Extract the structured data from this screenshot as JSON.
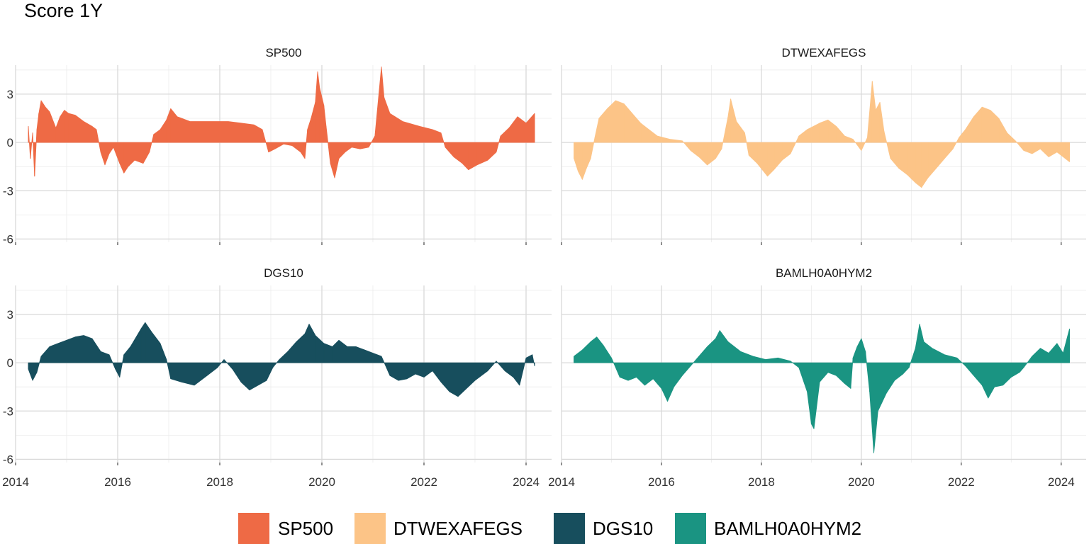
{
  "title": "Score 1Y",
  "chart_data": {
    "type": "bar",
    "title": "Score 1Y",
    "layout": "facet 2x2, shared axes",
    "x_range": [
      "2014-01-01",
      "2024-07-01"
    ],
    "x_ticks": [
      "2014",
      "2016",
      "2018",
      "2020",
      "2022",
      "2024"
    ],
    "y_range": [
      -6.2,
      4.8
    ],
    "y_ticks": [
      "3",
      "0",
      "-3",
      "-6"
    ],
    "grid": true,
    "legend_position": "bottom",
    "series": [
      {
        "name": "SP500",
        "color": "#EE6A45",
        "points": [
          [
            "2014-04-01",
            1.0
          ],
          [
            "2014-04-15",
            -1.0
          ],
          [
            "2014-05-01",
            0.6
          ],
          [
            "2014-05-15",
            -2.1
          ],
          [
            "2014-06-01",
            0.8
          ],
          [
            "2014-06-15",
            1.8
          ],
          [
            "2014-07-01",
            2.6
          ],
          [
            "2014-08-01",
            2.2
          ],
          [
            "2014-09-01",
            1.9
          ],
          [
            "2014-10-15",
            0.9
          ],
          [
            "2014-11-15",
            1.6
          ],
          [
            "2014-12-15",
            2.0
          ],
          [
            "2015-01-15",
            1.8
          ],
          [
            "2015-03-01",
            1.7
          ],
          [
            "2015-05-01",
            1.3
          ],
          [
            "2015-07-01",
            1.0
          ],
          [
            "2015-08-01",
            0.8
          ],
          [
            "2015-09-01",
            -0.6
          ],
          [
            "2015-10-01",
            -1.4
          ],
          [
            "2015-11-01",
            -0.7
          ],
          [
            "2015-12-01",
            -0.3
          ],
          [
            "2016-01-15",
            -1.3
          ],
          [
            "2016-02-15",
            -1.9
          ],
          [
            "2016-03-15",
            -1.5
          ],
          [
            "2016-05-01",
            -1.1
          ],
          [
            "2016-07-01",
            -1.3
          ],
          [
            "2016-08-15",
            -0.6
          ],
          [
            "2016-09-15",
            0.5
          ],
          [
            "2016-11-01",
            0.8
          ],
          [
            "2016-12-15",
            1.4
          ],
          [
            "2017-01-15",
            2.1
          ],
          [
            "2017-03-01",
            1.6
          ],
          [
            "2017-06-01",
            1.3
          ],
          [
            "2017-09-01",
            1.3
          ],
          [
            "2017-12-01",
            1.3
          ],
          [
            "2018-03-01",
            1.3
          ],
          [
            "2018-06-01",
            1.2
          ],
          [
            "2018-09-01",
            1.1
          ],
          [
            "2018-11-01",
            0.8
          ],
          [
            "2018-12-15",
            -0.6
          ],
          [
            "2019-02-01",
            -0.4
          ],
          [
            "2019-04-01",
            -0.1
          ],
          [
            "2019-06-01",
            -0.2
          ],
          [
            "2019-08-01",
            -0.6
          ],
          [
            "2019-09-01",
            -1.0
          ],
          [
            "2019-09-20",
            0.8
          ],
          [
            "2019-10-15",
            1.5
          ],
          [
            "2019-11-15",
            2.5
          ],
          [
            "2019-12-01",
            4.4
          ],
          [
            "2019-12-15",
            3.4
          ],
          [
            "2020-01-15",
            2.3
          ],
          [
            "2020-02-01",
            1.0
          ],
          [
            "2020-03-01",
            -1.3
          ],
          [
            "2020-04-01",
            -2.2
          ],
          [
            "2020-05-01",
            -1.0
          ],
          [
            "2020-06-15",
            -0.6
          ],
          [
            "2020-08-01",
            -0.3
          ],
          [
            "2020-10-01",
            -0.4
          ],
          [
            "2020-12-01",
            -0.3
          ],
          [
            "2021-01-15",
            0.4
          ],
          [
            "2021-03-01",
            4.7
          ],
          [
            "2021-03-20",
            2.8
          ],
          [
            "2021-05-01",
            1.8
          ],
          [
            "2021-08-01",
            1.3
          ],
          [
            "2021-12-01",
            1.0
          ],
          [
            "2022-03-01",
            0.8
          ],
          [
            "2022-05-01",
            0.6
          ],
          [
            "2022-06-01",
            -0.3
          ],
          [
            "2022-08-01",
            -0.9
          ],
          [
            "2022-10-01",
            -1.3
          ],
          [
            "2022-11-15",
            -1.7
          ],
          [
            "2023-01-15",
            -1.4
          ],
          [
            "2023-04-01",
            -1.1
          ],
          [
            "2023-06-01",
            -0.6
          ],
          [
            "2023-07-01",
            0.4
          ],
          [
            "2023-09-01",
            0.9
          ],
          [
            "2023-11-01",
            1.6
          ],
          [
            "2024-01-01",
            1.2
          ],
          [
            "2024-02-01",
            1.5
          ],
          [
            "2024-03-01",
            1.8
          ]
        ]
      },
      {
        "name": "DTWEXAFEGS",
        "color": "#FCC487",
        "points": [
          [
            "2014-04-01",
            -1.0
          ],
          [
            "2014-05-01",
            -1.8
          ],
          [
            "2014-06-01",
            -2.3
          ],
          [
            "2014-07-01",
            -1.6
          ],
          [
            "2014-08-01",
            -1.0
          ],
          [
            "2014-09-01",
            0.3
          ],
          [
            "2014-10-01",
            1.5
          ],
          [
            "2014-12-01",
            2.1
          ],
          [
            "2015-02-01",
            2.6
          ],
          [
            "2015-04-01",
            2.4
          ],
          [
            "2015-06-01",
            1.8
          ],
          [
            "2015-08-01",
            1.2
          ],
          [
            "2015-10-01",
            0.8
          ],
          [
            "2015-12-01",
            0.4
          ],
          [
            "2016-03-01",
            0.2
          ],
          [
            "2016-06-01",
            0.1
          ],
          [
            "2016-08-01",
            -0.5
          ],
          [
            "2016-10-01",
            -0.9
          ],
          [
            "2016-12-01",
            -1.4
          ],
          [
            "2017-02-01",
            -1.0
          ],
          [
            "2017-03-15",
            -0.4
          ],
          [
            "2017-05-01",
            1.6
          ],
          [
            "2017-05-20",
            2.7
          ],
          [
            "2017-07-01",
            1.3
          ],
          [
            "2017-09-01",
            0.6
          ],
          [
            "2017-10-01",
            -0.8
          ],
          [
            "2017-12-01",
            -1.3
          ],
          [
            "2018-02-15",
            -2.1
          ],
          [
            "2018-04-01",
            -1.7
          ],
          [
            "2018-06-01",
            -1.1
          ],
          [
            "2018-08-01",
            -0.7
          ],
          [
            "2018-10-01",
            0.4
          ],
          [
            "2018-12-01",
            0.8
          ],
          [
            "2019-03-01",
            1.2
          ],
          [
            "2019-05-01",
            1.4
          ],
          [
            "2019-07-01",
            1.0
          ],
          [
            "2019-09-01",
            0.4
          ],
          [
            "2019-11-01",
            0.2
          ],
          [
            "2020-01-01",
            -0.5
          ],
          [
            "2020-02-15",
            0.3
          ],
          [
            "2020-03-20",
            3.8
          ],
          [
            "2020-04-15",
            2.0
          ],
          [
            "2020-05-15",
            2.5
          ],
          [
            "2020-06-15",
            0.7
          ],
          [
            "2020-08-01",
            -1.0
          ],
          [
            "2020-10-01",
            -1.6
          ],
          [
            "2020-12-01",
            -2.0
          ],
          [
            "2021-02-01",
            -2.5
          ],
          [
            "2021-03-15",
            -2.8
          ],
          [
            "2021-05-01",
            -2.2
          ],
          [
            "2021-07-01",
            -1.6
          ],
          [
            "2021-09-01",
            -1.0
          ],
          [
            "2021-11-01",
            -0.4
          ],
          [
            "2021-12-15",
            0.3
          ],
          [
            "2022-02-01",
            0.8
          ],
          [
            "2022-04-01",
            1.6
          ],
          [
            "2022-06-01",
            2.2
          ],
          [
            "2022-08-01",
            2.0
          ],
          [
            "2022-10-01",
            1.5
          ],
          [
            "2022-12-01",
            0.6
          ],
          [
            "2023-02-01",
            0.1
          ],
          [
            "2023-04-01",
            -0.5
          ],
          [
            "2023-06-01",
            -0.7
          ],
          [
            "2023-08-01",
            -0.4
          ],
          [
            "2023-10-01",
            -0.9
          ],
          [
            "2023-12-01",
            -0.6
          ],
          [
            "2024-02-01",
            -1.0
          ],
          [
            "2024-03-01",
            -1.2
          ]
        ]
      },
      {
        "name": "DGS10",
        "color": "#174E5D",
        "points": [
          [
            "2014-04-01",
            -0.4
          ],
          [
            "2014-05-01",
            -1.1
          ],
          [
            "2014-06-01",
            -0.6
          ],
          [
            "2014-07-01",
            0.4
          ],
          [
            "2014-09-01",
            1.0
          ],
          [
            "2014-11-01",
            1.2
          ],
          [
            "2015-01-01",
            1.4
          ],
          [
            "2015-03-01",
            1.6
          ],
          [
            "2015-05-01",
            1.7
          ],
          [
            "2015-07-01",
            1.5
          ],
          [
            "2015-09-01",
            0.7
          ],
          [
            "2015-11-01",
            0.5
          ],
          [
            "2015-12-15",
            -0.4
          ],
          [
            "2016-01-15",
            -0.9
          ],
          [
            "2016-02-15",
            0.5
          ],
          [
            "2016-04-01",
            1.0
          ],
          [
            "2016-06-15",
            2.1
          ],
          [
            "2016-07-15",
            2.5
          ],
          [
            "2016-09-01",
            1.9
          ],
          [
            "2016-11-01",
            1.2
          ],
          [
            "2016-12-15",
            0.2
          ],
          [
            "2017-01-15",
            -1.0
          ],
          [
            "2017-04-01",
            -1.2
          ],
          [
            "2017-07-01",
            -1.4
          ],
          [
            "2017-10-01",
            -0.8
          ],
          [
            "2017-12-15",
            -0.3
          ],
          [
            "2018-02-01",
            0.2
          ],
          [
            "2018-04-01",
            -0.4
          ],
          [
            "2018-06-01",
            -1.2
          ],
          [
            "2018-08-01",
            -1.7
          ],
          [
            "2018-10-01",
            -1.4
          ],
          [
            "2018-12-01",
            -1.1
          ],
          [
            "2019-01-15",
            -0.3
          ],
          [
            "2019-03-01",
            0.2
          ],
          [
            "2019-05-01",
            0.7
          ],
          [
            "2019-07-01",
            1.3
          ],
          [
            "2019-09-01",
            1.8
          ],
          [
            "2019-10-01",
            2.4
          ],
          [
            "2019-11-15",
            1.7
          ],
          [
            "2020-01-15",
            1.2
          ],
          [
            "2020-03-15",
            1.0
          ],
          [
            "2020-05-01",
            1.4
          ],
          [
            "2020-07-01",
            1.0
          ],
          [
            "2020-09-01",
            1.0
          ],
          [
            "2020-11-01",
            0.8
          ],
          [
            "2021-01-01",
            0.6
          ],
          [
            "2021-03-01",
            0.4
          ],
          [
            "2021-05-01",
            -0.8
          ],
          [
            "2021-07-01",
            -1.1
          ],
          [
            "2021-09-01",
            -1.0
          ],
          [
            "2021-11-01",
            -0.7
          ],
          [
            "2022-01-01",
            -0.9
          ],
          [
            "2022-03-01",
            -0.5
          ],
          [
            "2022-05-01",
            -1.2
          ],
          [
            "2022-07-01",
            -1.8
          ],
          [
            "2022-09-01",
            -2.1
          ],
          [
            "2022-11-01",
            -1.6
          ],
          [
            "2023-01-01",
            -1.1
          ],
          [
            "2023-04-01",
            -0.5
          ],
          [
            "2023-06-01",
            0.1
          ],
          [
            "2023-08-01",
            -0.5
          ],
          [
            "2023-10-01",
            -0.9
          ],
          [
            "2023-11-15",
            -1.4
          ],
          [
            "2024-01-01",
            0.3
          ],
          [
            "2024-02-15",
            0.5
          ],
          [
            "2024-03-01",
            -0.2
          ]
        ]
      },
      {
        "name": "BAMLH0A0HYM2",
        "color": "#1A9482",
        "points": [
          [
            "2014-04-01",
            0.4
          ],
          [
            "2014-06-01",
            0.8
          ],
          [
            "2014-08-01",
            1.3
          ],
          [
            "2014-09-15",
            1.6
          ],
          [
            "2014-11-01",
            1.1
          ],
          [
            "2015-01-01",
            0.3
          ],
          [
            "2015-03-01",
            -0.9
          ],
          [
            "2015-05-01",
            -1.1
          ],
          [
            "2015-07-01",
            -0.9
          ],
          [
            "2015-09-01",
            -1.4
          ],
          [
            "2015-11-01",
            -1.0
          ],
          [
            "2016-01-01",
            -1.6
          ],
          [
            "2016-02-15",
            -2.4
          ],
          [
            "2016-04-01",
            -1.5
          ],
          [
            "2016-06-01",
            -0.8
          ],
          [
            "2016-08-01",
            -0.2
          ],
          [
            "2016-10-01",
            0.4
          ],
          [
            "2016-12-01",
            1.0
          ],
          [
            "2017-02-01",
            1.5
          ],
          [
            "2017-03-01",
            2.0
          ],
          [
            "2017-05-01",
            1.3
          ],
          [
            "2017-08-01",
            0.7
          ],
          [
            "2017-11-01",
            0.4
          ],
          [
            "2018-02-01",
            0.2
          ],
          [
            "2018-05-01",
            0.3
          ],
          [
            "2018-08-01",
            0.1
          ],
          [
            "2018-10-01",
            -0.3
          ],
          [
            "2018-12-01",
            -1.8
          ],
          [
            "2019-01-01",
            -3.8
          ],
          [
            "2019-01-20",
            -4.1
          ],
          [
            "2019-03-01",
            -1.2
          ],
          [
            "2019-05-01",
            -0.6
          ],
          [
            "2019-07-01",
            -0.8
          ],
          [
            "2019-09-01",
            -1.3
          ],
          [
            "2019-10-15",
            -1.6
          ],
          [
            "2019-11-01",
            0.3
          ],
          [
            "2019-12-01",
            1.0
          ],
          [
            "2020-01-01",
            1.5
          ],
          [
            "2020-02-01",
            0.7
          ],
          [
            "2020-03-01",
            -1.8
          ],
          [
            "2020-04-01",
            -5.6
          ],
          [
            "2020-05-01",
            -3.0
          ],
          [
            "2020-07-01",
            -1.9
          ],
          [
            "2020-09-01",
            -1.1
          ],
          [
            "2020-11-01",
            -0.7
          ],
          [
            "2020-12-15",
            -0.3
          ],
          [
            "2021-02-01",
            0.9
          ],
          [
            "2021-03-01",
            2.4
          ],
          [
            "2021-04-01",
            1.3
          ],
          [
            "2021-06-01",
            0.9
          ],
          [
            "2021-09-01",
            0.5
          ],
          [
            "2021-12-01",
            0.3
          ],
          [
            "2022-02-01",
            -0.2
          ],
          [
            "2022-04-01",
            -0.8
          ],
          [
            "2022-06-01",
            -1.4
          ],
          [
            "2022-07-15",
            -2.2
          ],
          [
            "2022-09-01",
            -1.5
          ],
          [
            "2022-11-01",
            -1.4
          ],
          [
            "2023-01-01",
            -0.9
          ],
          [
            "2023-03-01",
            -0.6
          ],
          [
            "2023-04-01",
            -0.3
          ],
          [
            "2023-06-01",
            0.4
          ],
          [
            "2023-08-01",
            0.9
          ],
          [
            "2023-10-01",
            0.6
          ],
          [
            "2023-12-01",
            1.2
          ],
          [
            "2024-01-15",
            0.6
          ],
          [
            "2024-03-01",
            2.1
          ]
        ]
      }
    ]
  }
}
